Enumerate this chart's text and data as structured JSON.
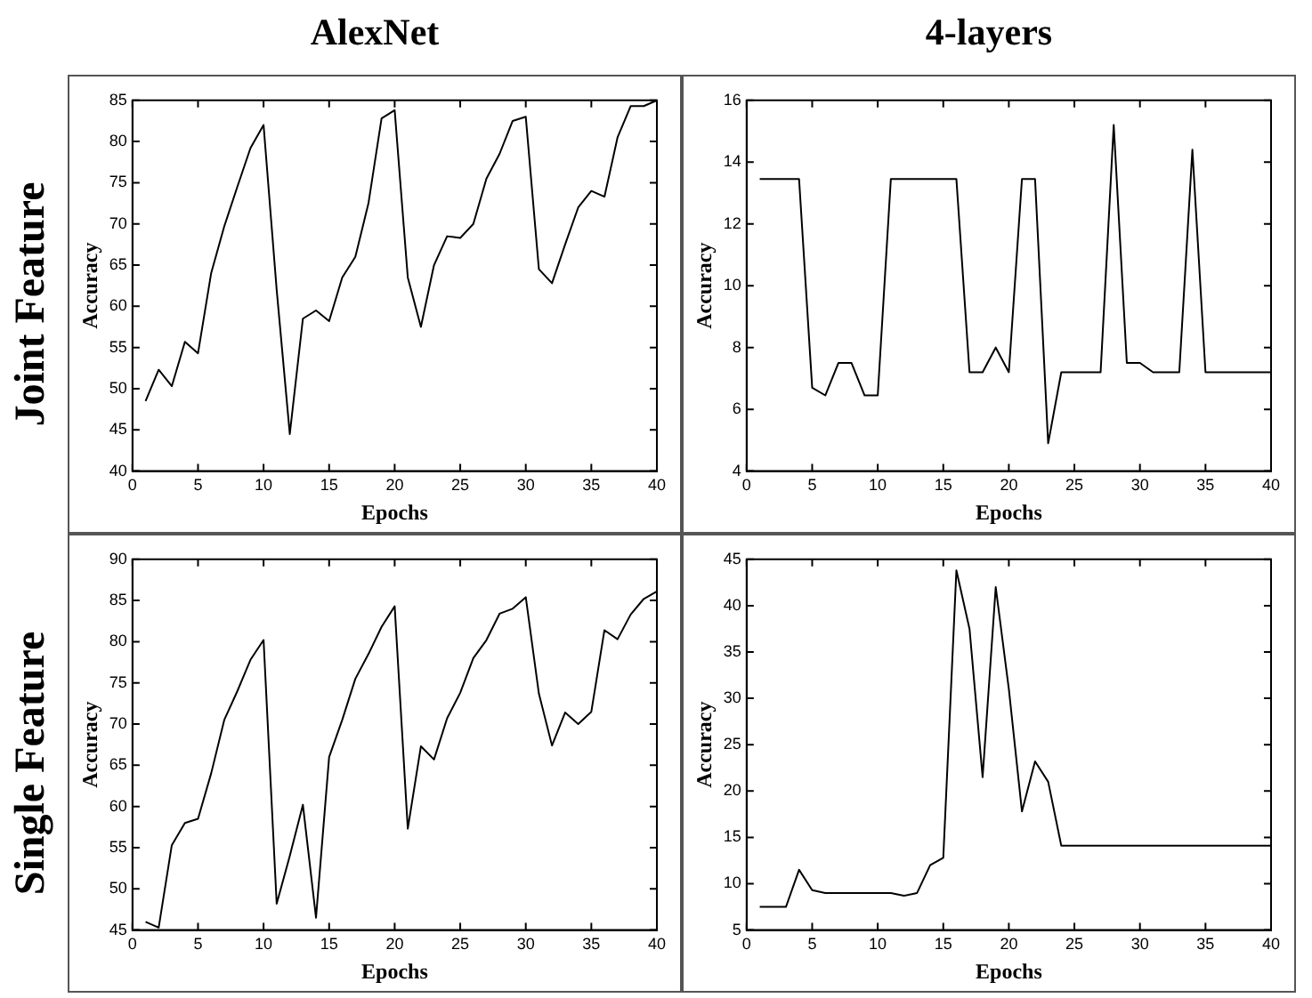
{
  "chart_data": [
    {
      "type": "line",
      "title": "AlexNet",
      "annotations": [
        "Joint Feature"
      ],
      "xlabel": "Epochs",
      "ylabel": "Accuracy",
      "color": "#000000",
      "marker": "none",
      "grid": false,
      "xlim": [
        0,
        40
      ],
      "xticks": [
        0,
        5,
        10,
        15,
        20,
        25,
        30,
        35,
        40
      ],
      "ylim": [
        40,
        85
      ],
      "yticks": [
        40,
        45,
        50,
        55,
        60,
        65,
        70,
        75,
        80,
        85
      ],
      "x": [
        1,
        2,
        3,
        4,
        5,
        6,
        7,
        8,
        9,
        10,
        11,
        12,
        13,
        14,
        15,
        16,
        17,
        18,
        19,
        20,
        21,
        22,
        23,
        24,
        25,
        26,
        27,
        28,
        29,
        30,
        31,
        32,
        33,
        34,
        35,
        36,
        37,
        38,
        39,
        40
      ],
      "values": [
        48.5,
        52.3,
        50.3,
        55.7,
        54.3,
        64,
        69.7,
        74.5,
        79.2,
        82,
        62,
        44.5,
        58.5,
        59.5,
        58.2,
        63.5,
        66,
        72.5,
        82.8,
        83.8,
        63.5,
        57.5,
        65,
        68.5,
        68.3,
        70,
        75.5,
        78.5,
        82.5,
        83,
        64.5,
        62.8,
        67.5,
        72,
        74,
        73.3,
        80.5,
        84.3,
        84.3,
        85
      ]
    },
    {
      "type": "line",
      "title": "4-layers",
      "xlabel": "Epochs",
      "ylabel": "Accuracy",
      "color": "#000000",
      "marker": "none",
      "grid": false,
      "xlim": [
        0,
        40
      ],
      "xticks": [
        0,
        5,
        10,
        15,
        20,
        25,
        30,
        35,
        40
      ],
      "ylim": [
        4,
        16
      ],
      "yticks": [
        4,
        6,
        8,
        10,
        12,
        14,
        16
      ],
      "x": [
        1,
        2,
        3,
        4,
        5,
        6,
        7,
        8,
        9,
        10,
        11,
        12,
        13,
        14,
        15,
        16,
        17,
        18,
        19,
        20,
        21,
        22,
        23,
        24,
        25,
        26,
        27,
        28,
        29,
        30,
        31,
        32,
        33,
        34,
        35,
        36,
        37,
        38,
        39,
        40
      ],
      "values": [
        13.45,
        13.45,
        13.45,
        13.45,
        6.7,
        6.45,
        7.5,
        7.5,
        6.45,
        6.45,
        13.45,
        13.45,
        13.45,
        13.45,
        13.45,
        13.45,
        7.2,
        7.2,
        8,
        7.2,
        13.45,
        13.45,
        4.9,
        7.2,
        7.2,
        7.2,
        7.2,
        15.2,
        7.5,
        7.5,
        7.2,
        7.2,
        7.2,
        14.4,
        7.2,
        7.2,
        7.2,
        7.2,
        7.2,
        7.2
      ]
    },
    {
      "type": "line",
      "annotations": [
        "Single Feature"
      ],
      "xlabel": "Epochs",
      "ylabel": "Accuracy",
      "color": "#000000",
      "marker": "none",
      "grid": false,
      "xlim": [
        0,
        40
      ],
      "xticks": [
        0,
        5,
        10,
        15,
        20,
        25,
        30,
        35,
        40
      ],
      "ylim": [
        45,
        90
      ],
      "yticks": [
        45,
        50,
        55,
        60,
        65,
        70,
        75,
        80,
        85,
        90
      ],
      "x": [
        1,
        2,
        3,
        4,
        5,
        6,
        7,
        8,
        9,
        10,
        11,
        12,
        13,
        14,
        15,
        16,
        17,
        18,
        19,
        20,
        21,
        22,
        23,
        24,
        25,
        26,
        27,
        28,
        29,
        30,
        31,
        32,
        33,
        34,
        35,
        36,
        37,
        38,
        39,
        40
      ],
      "values": [
        46,
        45.3,
        55.3,
        58,
        58.5,
        64,
        70.5,
        74,
        77.8,
        80.2,
        48.2,
        54,
        60.2,
        46.5,
        66,
        70.5,
        75.5,
        78.5,
        81.8,
        84.3,
        57.3,
        67.3,
        65.7,
        70.7,
        73.8,
        78,
        80.2,
        83.4,
        84,
        85.4,
        73.7,
        67.4,
        71.4,
        70,
        71.5,
        81.4,
        80.3,
        83.3,
        85.2,
        86.1
      ]
    },
    {
      "type": "line",
      "xlabel": "Epochs",
      "ylabel": "Accuracy",
      "color": "#000000",
      "marker": "none",
      "grid": false,
      "xlim": [
        0,
        40
      ],
      "xticks": [
        0,
        5,
        10,
        15,
        20,
        25,
        30,
        35,
        40
      ],
      "ylim": [
        5,
        45
      ],
      "yticks": [
        5,
        10,
        15,
        20,
        25,
        30,
        35,
        40,
        45
      ],
      "x": [
        1,
        2,
        3,
        4,
        5,
        6,
        7,
        8,
        9,
        10,
        11,
        12,
        13,
        14,
        15,
        16,
        17,
        18,
        19,
        20,
        21,
        22,
        23,
        24,
        25,
        26,
        27,
        28,
        29,
        30,
        31,
        32,
        33,
        34,
        35,
        36,
        37,
        38,
        39,
        40
      ],
      "values": [
        7.5,
        7.5,
        7.5,
        11.5,
        9.3,
        9,
        9,
        9,
        9,
        9,
        9,
        8.7,
        9,
        12,
        12.8,
        43.8,
        37.5,
        21.5,
        42,
        31,
        17.8,
        23.2,
        21,
        14.1,
        14.1,
        14.1,
        14.1,
        14.1,
        14.1,
        14.1,
        14.1,
        14.1,
        14.1,
        14.1,
        14.1,
        14.1,
        14.1,
        14.1,
        14.1,
        14.1
      ]
    }
  ]
}
